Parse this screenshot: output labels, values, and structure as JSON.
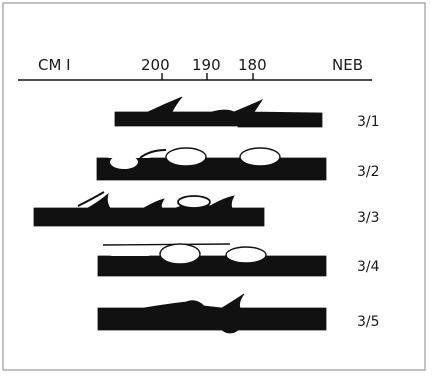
{
  "axis": {
    "left_label": "CM I",
    "ticks": [
      "200",
      "190",
      "180"
    ],
    "right_label": "NEB"
  },
  "rows": [
    {
      "label": "3/1"
    },
    {
      "label": "3/2"
    },
    {
      "label": "3/3"
    },
    {
      "label": "3/4"
    },
    {
      "label": "3/5"
    }
  ],
  "colors": {
    "ink": "#111111",
    "frame": "#9a9a9a",
    "background": "#ffffff"
  }
}
